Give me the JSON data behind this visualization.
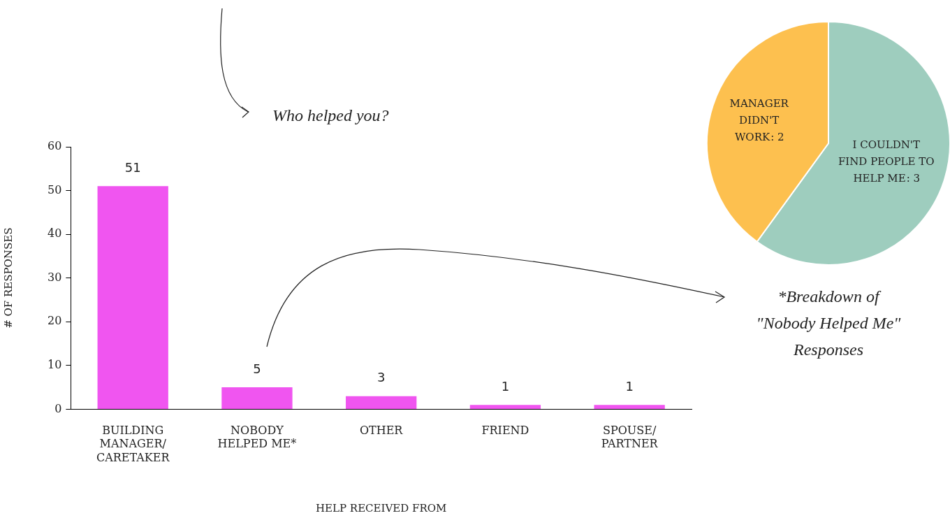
{
  "chart_data": [
    {
      "type": "bar",
      "title": "Who helped you?",
      "xlabel": "HELP RECEIVED FROM",
      "ylabel": "# OF RESPONSES",
      "categories": [
        "BUILDING MANAGER/ CARETAKER",
        "NOBODY HELPED ME*",
        "OTHER",
        "FRIEND",
        "SPOUSE/ PARTNER"
      ],
      "values": [
        51,
        5,
        3,
        1,
        1
      ],
      "color": "#f055f0",
      "ylim": [
        0,
        60
      ],
      "yticks": [
        0,
        10,
        20,
        30,
        40,
        50,
        60
      ],
      "grid": false,
      "legend": false,
      "data_labels": true
    },
    {
      "type": "pie",
      "title": "*Breakdown of \"Nobody Helped Me\" Responses",
      "categories": [
        "I COULDN'T FIND PEOPLE TO HELP ME",
        "MANAGER DIDN'T WORK"
      ],
      "values": [
        3,
        2
      ],
      "value_labels": [
        ": 3",
        ": 2"
      ],
      "colors": [
        "#9ecdbe",
        "#fdc04f"
      ],
      "legend": false
    }
  ]
}
